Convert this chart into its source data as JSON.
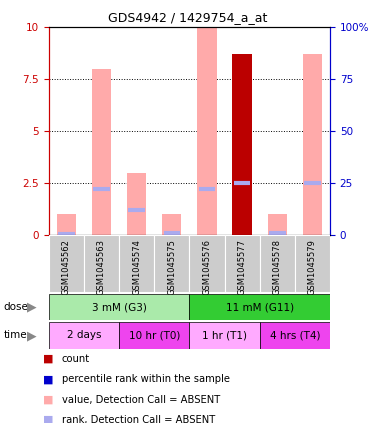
{
  "title": "GDS4942 / 1429754_a_at",
  "samples": [
    "GSM1045562",
    "GSM1045563",
    "GSM1045574",
    "GSM1045575",
    "GSM1045576",
    "GSM1045577",
    "GSM1045578",
    "GSM1045579"
  ],
  "pink_bar_heights": [
    1.0,
    8.0,
    3.0,
    1.0,
    10.0,
    8.7,
    1.0,
    8.7
  ],
  "red_bar_heights": [
    0.0,
    0.0,
    0.0,
    0.0,
    0.0,
    8.7,
    0.0,
    0.0
  ],
  "blue_line_values": [
    0.06,
    2.2,
    1.2,
    0.08,
    2.2,
    2.5,
    0.08,
    2.5
  ],
  "ylim_left": [
    0,
    10
  ],
  "ylim_right": [
    0,
    100
  ],
  "yticks_left": [
    0,
    2.5,
    5,
    7.5,
    10
  ],
  "yticks_right": [
    0,
    25,
    50,
    75,
    100
  ],
  "ytick_labels_left": [
    "0",
    "2.5",
    "5",
    "7.5",
    "10"
  ],
  "ytick_labels_right": [
    "0",
    "25",
    "50",
    "75",
    "100%"
  ],
  "dose_groups": [
    {
      "label": "3 mM (G3)",
      "start": 0,
      "end": 4,
      "color": "#aaeaaa"
    },
    {
      "label": "11 mM (G11)",
      "start": 4,
      "end": 8,
      "color": "#33cc33"
    }
  ],
  "time_groups": [
    {
      "label": "2 days",
      "start": 0,
      "end": 2,
      "color": "#ffaaff"
    },
    {
      "label": "10 hr (T0)",
      "start": 2,
      "end": 4,
      "color": "#ee44ee"
    },
    {
      "label": "1 hr (T1)",
      "start": 4,
      "end": 6,
      "color": "#ffaaff"
    },
    {
      "label": "4 hrs (T4)",
      "start": 6,
      "end": 8,
      "color": "#ee44ee"
    }
  ],
  "pink_color": "#ffaaaa",
  "red_color": "#bb0000",
  "blue_color": "#aaaaee",
  "left_axis_color": "#cc0000",
  "right_axis_color": "#0000cc",
  "grid_color": "black",
  "sample_bg_color": "#cccccc",
  "legend_items": [
    {
      "color": "#bb0000",
      "label": "count"
    },
    {
      "color": "#0000cc",
      "label": "percentile rank within the sample"
    },
    {
      "color": "#ffaaaa",
      "label": "value, Detection Call = ABSENT"
    },
    {
      "color": "#aaaaee",
      "label": "rank, Detection Call = ABSENT"
    }
  ]
}
